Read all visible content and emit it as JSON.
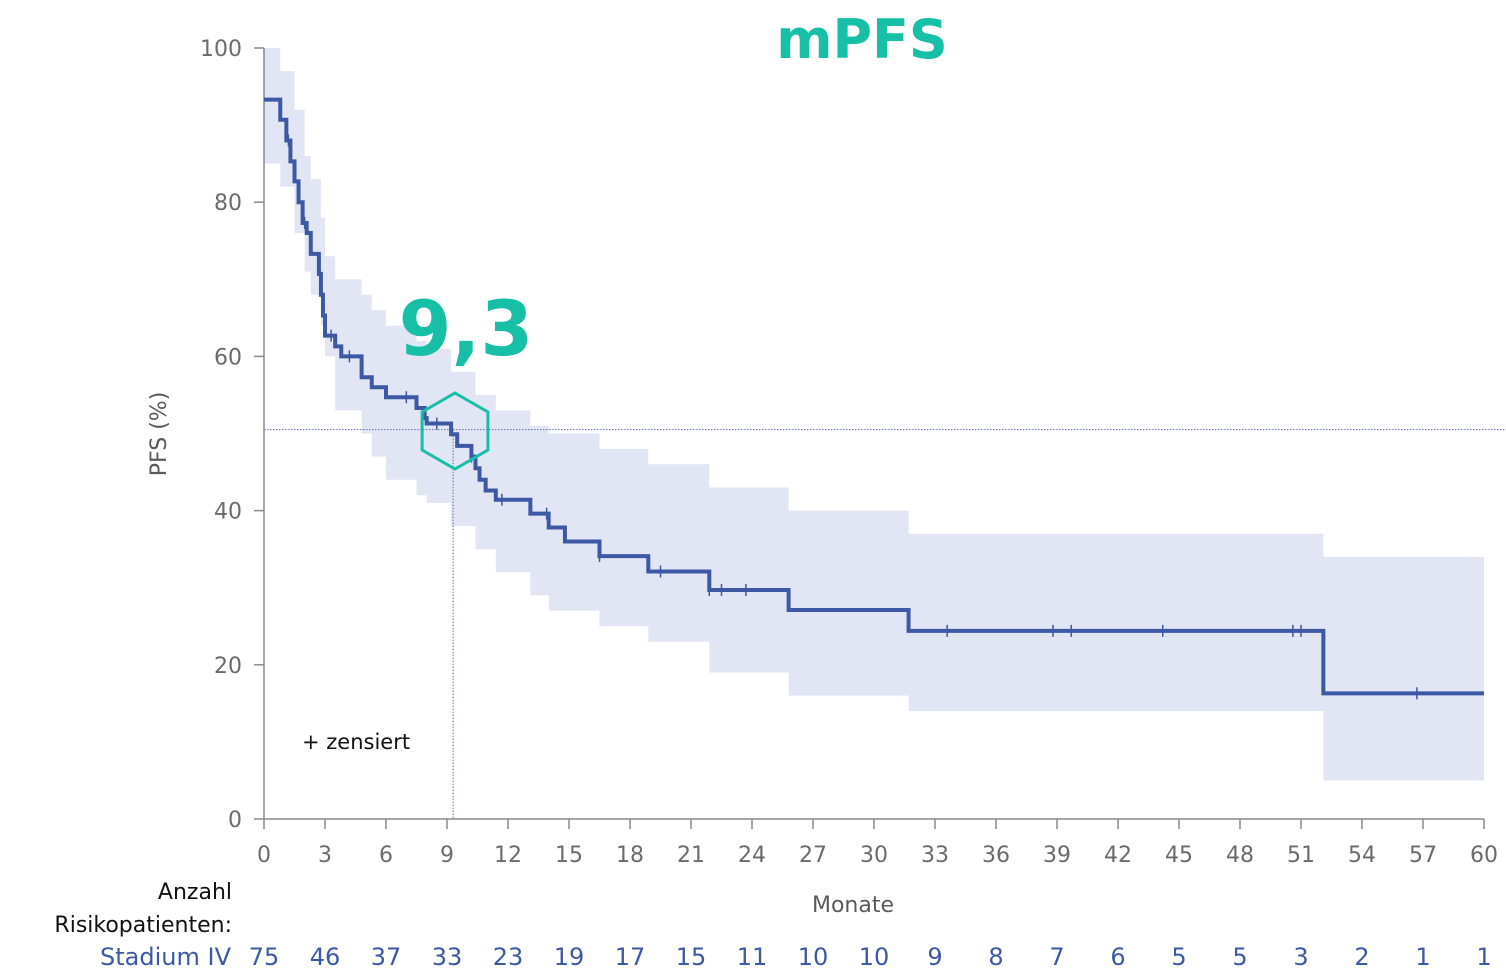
{
  "chart_data": {
    "type": "line",
    "title": "mPFS",
    "ylabel": "PFS (%)",
    "xlabel": "Monate",
    "xlim": [
      0,
      60
    ],
    "ylim": [
      0,
      100
    ],
    "x_ticks": [
      "0",
      "3",
      "6",
      "9",
      "12",
      "15",
      "18",
      "21",
      "24",
      "27",
      "30",
      "33",
      "36",
      "39",
      "42",
      "45",
      "48",
      "51",
      "54",
      "57",
      "60"
    ],
    "y_ticks": [
      "0",
      "20",
      "40",
      "60",
      "80",
      "100"
    ],
    "grid": false,
    "median": {
      "label": "9,3",
      "x": 9.3,
      "y": 50.5
    },
    "censor_note": "+ zensiert",
    "series": [
      {
        "name": "Stadium IV",
        "step_points": [
          [
            0,
            93.3
          ],
          [
            0.8,
            90.7
          ],
          [
            1.1,
            88
          ],
          [
            1.3,
            85.3
          ],
          [
            1.5,
            82.7
          ],
          [
            1.7,
            80
          ],
          [
            1.9,
            77.3
          ],
          [
            2.1,
            76
          ],
          [
            2.3,
            73.3
          ],
          [
            2.7,
            70.7
          ],
          [
            2.8,
            68
          ],
          [
            2.9,
            65.3
          ],
          [
            3.0,
            62.7
          ],
          [
            3.5,
            61.3
          ],
          [
            3.8,
            60
          ],
          [
            4.8,
            57.3
          ],
          [
            5.3,
            56
          ],
          [
            6.0,
            54.7
          ],
          [
            7.5,
            53.3
          ],
          [
            7.9,
            52
          ],
          [
            8.0,
            51.3
          ],
          [
            9.2,
            49.9
          ],
          [
            9.5,
            48.4
          ],
          [
            10.2,
            47
          ],
          [
            10.4,
            45.5
          ],
          [
            10.6,
            44
          ],
          [
            10.9,
            42.6
          ],
          [
            11.4,
            41.4
          ],
          [
            13.1,
            39.6
          ],
          [
            14.0,
            37.8
          ],
          [
            14.8,
            36
          ],
          [
            16.5,
            34.1
          ],
          [
            18.9,
            32.1
          ],
          [
            21.9,
            29.7
          ],
          [
            25.8,
            27.1
          ],
          [
            31.7,
            24.4
          ],
          [
            52.1,
            16.3
          ],
          [
            60.0,
            16.3
          ]
        ],
        "ci_upper": [
          [
            0,
            100
          ],
          [
            0.8,
            97
          ],
          [
            1.5,
            92
          ],
          [
            2.0,
            86
          ],
          [
            2.3,
            83
          ],
          [
            2.8,
            78
          ],
          [
            3.0,
            73
          ],
          [
            3.5,
            70
          ],
          [
            4.8,
            68
          ],
          [
            5.3,
            66
          ],
          [
            6.0,
            64
          ],
          [
            7.5,
            62
          ],
          [
            8.0,
            61
          ],
          [
            9.2,
            58
          ],
          [
            10.4,
            55
          ],
          [
            11.4,
            53
          ],
          [
            13.1,
            51
          ],
          [
            14.0,
            50
          ],
          [
            16.5,
            48
          ],
          [
            18.9,
            46
          ],
          [
            21.9,
            43
          ],
          [
            25.8,
            40
          ],
          [
            31.7,
            37
          ],
          [
            52.1,
            34
          ],
          [
            60.0,
            34
          ]
        ],
        "ci_lower": [
          [
            0,
            85
          ],
          [
            0.8,
            82
          ],
          [
            1.5,
            76
          ],
          [
            2.0,
            71
          ],
          [
            2.3,
            68
          ],
          [
            2.8,
            64
          ],
          [
            3.0,
            60
          ],
          [
            3.5,
            53
          ],
          [
            4.8,
            50
          ],
          [
            5.3,
            47
          ],
          [
            6.0,
            44
          ],
          [
            7.5,
            42
          ],
          [
            8.0,
            41
          ],
          [
            9.2,
            38
          ],
          [
            10.4,
            35
          ],
          [
            11.4,
            32
          ],
          [
            13.1,
            29
          ],
          [
            14.0,
            27
          ],
          [
            16.5,
            25
          ],
          [
            18.9,
            23
          ],
          [
            21.9,
            19
          ],
          [
            25.8,
            16
          ],
          [
            31.7,
            14
          ],
          [
            52.1,
            5
          ],
          [
            60.0,
            5
          ]
        ],
        "censored_x": [
          1.2,
          2.0,
          3.3,
          4.2,
          7.0,
          8.5,
          10.2,
          11.7,
          13.9,
          16.5,
          19.5,
          21.9,
          22.5,
          23.7,
          33.6,
          38.8,
          39.7,
          44.2,
          50.6,
          51.0,
          56.7
        ]
      }
    ],
    "risk_table": {
      "header_line1": "Anzahl",
      "header_line2": "Risikopatienten:",
      "row_label": "Stadium IV",
      "values": [
        "75",
        "46",
        "37",
        "33",
        "23",
        "19",
        "17",
        "15",
        "11",
        "10",
        "10",
        "9",
        "8",
        "7",
        "6",
        "5",
        "5",
        "3",
        "2",
        "1",
        "1"
      ]
    },
    "colors": {
      "line": "#3d58a5",
      "ci_band": "#e2e6f4",
      "accent": "#17bfa6",
      "axis": "#8a8a8a",
      "risk_number": "#3d58a5",
      "reference": "#5a6fb5"
    }
  }
}
